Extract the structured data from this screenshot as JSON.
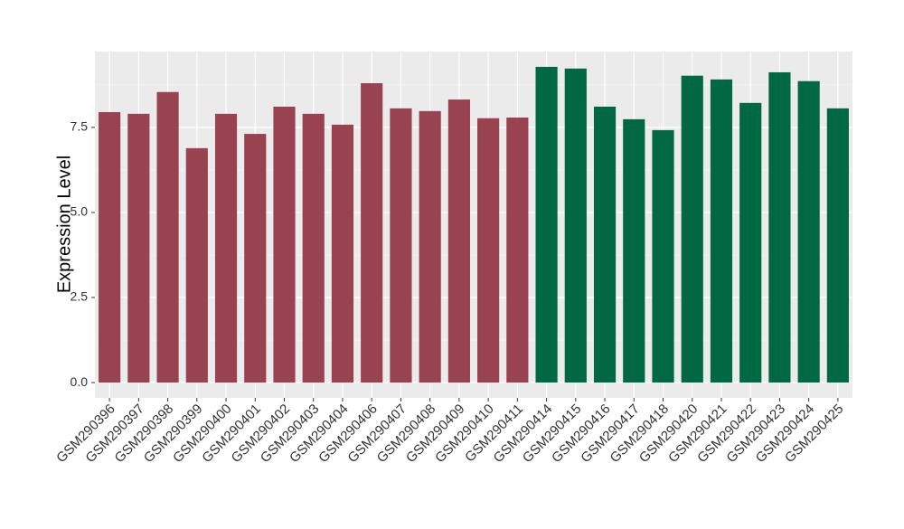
{
  "chart_data": {
    "type": "bar",
    "y_label": "Expression Level",
    "categories": [
      "GSM290396",
      "GSM290397",
      "GSM290398",
      "GSM290399",
      "GSM290400",
      "GSM290401",
      "GSM290402",
      "GSM290403",
      "GSM290404",
      "GSM290406",
      "GSM290407",
      "GSM290408",
      "GSM290409",
      "GSM290410",
      "GSM290411",
      "GSM290414",
      "GSM290415",
      "GSM290416",
      "GSM290417",
      "GSM290418",
      "GSM290420",
      "GSM290421",
      "GSM290422",
      "GSM290423",
      "GSM290424",
      "GSM290425"
    ],
    "values": [
      7.95,
      7.9,
      8.54,
      6.89,
      7.9,
      7.31,
      8.11,
      7.9,
      7.58,
      8.8,
      8.06,
      7.98,
      8.32,
      7.77,
      7.79,
      9.28,
      9.23,
      8.11,
      7.74,
      7.42,
      9.02,
      8.91,
      8.22,
      9.12,
      8.86,
      8.06
    ],
    "colors": [
      "#9a4350",
      "#9a4350",
      "#9a4350",
      "#9a4350",
      "#9a4350",
      "#9a4350",
      "#9a4350",
      "#9a4350",
      "#9a4350",
      "#9a4350",
      "#9a4350",
      "#9a4350",
      "#9a4350",
      "#9a4350",
      "#9a4350",
      "#006843",
      "#006843",
      "#006843",
      "#006843",
      "#006843",
      "#006843",
      "#006843",
      "#006843",
      "#006843",
      "#006843",
      "#006843"
    ],
    "ylim": [
      -0.45,
      9.73
    ],
    "yticks": [
      {
        "value": 0,
        "label": "0.0"
      },
      2.5,
      {
        "value": 5,
        "label": "5.0"
      },
      7.5
    ],
    "grid": true
  }
}
